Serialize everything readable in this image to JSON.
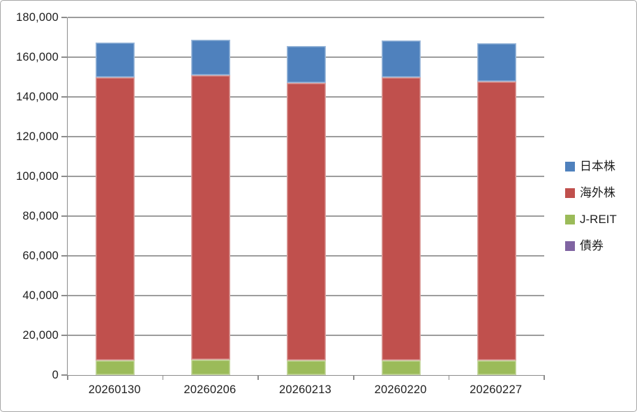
{
  "chart_data": {
    "type": "bar",
    "stacked": true,
    "orientation": "vertical",
    "grid": "horizontal",
    "legend_position": "right",
    "categories": [
      "20260130",
      "20260206",
      "20260213",
      "20260220",
      "20260227"
    ],
    "series": [
      {
        "key": "japan-stocks",
        "name": "日本株",
        "color": "#4F81BD",
        "values": [
          17500,
          17800,
          18500,
          18400,
          19100
        ]
      },
      {
        "key": "foreign-stocks",
        "name": "海外株",
        "color": "#C0504D",
        "values": [
          142600,
          143300,
          139800,
          142500,
          140400
        ]
      },
      {
        "key": "j-reit",
        "name": "J-REIT",
        "color": "#9BBB59",
        "values": [
          7400,
          7600,
          7200,
          7500,
          7500
        ]
      },
      {
        "key": "bonds",
        "name": "債券",
        "color": "#8064A2",
        "values": [
          0,
          0,
          0,
          0,
          0
        ]
      }
    ],
    "stack_order_bottom_to_top": [
      "bonds",
      "j-reit",
      "foreign-stocks",
      "japan-stocks"
    ],
    "ylim": [
      0,
      180000
    ],
    "ytick_step": 20000,
    "yticklabels_top_to_bottom": [
      "180,000",
      "160,000",
      "140,000",
      "120,000",
      "100,000",
      "80,000",
      "60,000",
      "40,000",
      "20,000",
      "0"
    ]
  }
}
